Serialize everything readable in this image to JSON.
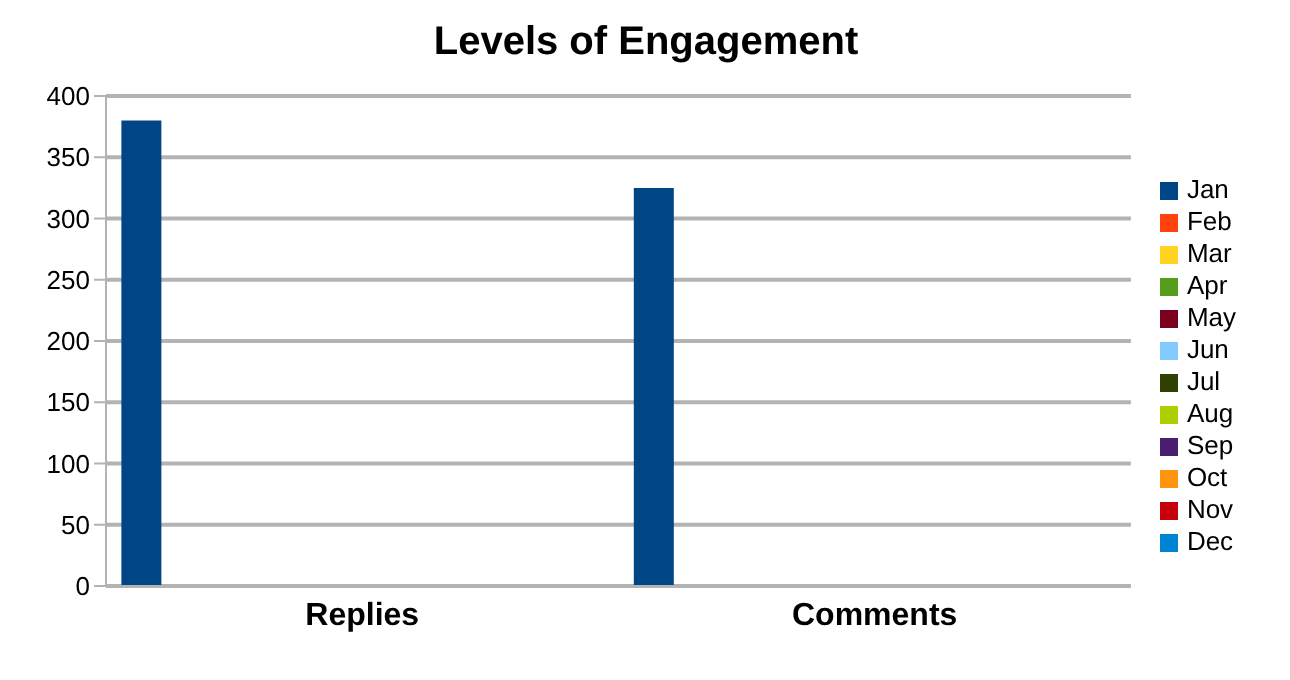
{
  "chart_data": {
    "type": "bar",
    "title": "Levels of Engagement",
    "categories": [
      "Replies",
      "Comments"
    ],
    "series": [
      {
        "name": "Jan",
        "color": "#004586",
        "values": [
          380,
          325
        ]
      },
      {
        "name": "Feb",
        "color": "#ff420e",
        "values": [
          0,
          0
        ]
      },
      {
        "name": "Mar",
        "color": "#ffd320",
        "values": [
          0,
          0
        ]
      },
      {
        "name": "Apr",
        "color": "#579d1c",
        "values": [
          0,
          0
        ]
      },
      {
        "name": "May",
        "color": "#7e0021",
        "values": [
          0,
          0
        ]
      },
      {
        "name": "Jun",
        "color": "#83caff",
        "values": [
          0,
          0
        ]
      },
      {
        "name": "Jul",
        "color": "#314004",
        "values": [
          0,
          0
        ]
      },
      {
        "name": "Aug",
        "color": "#aecf00",
        "values": [
          0,
          0
        ]
      },
      {
        "name": "Sep",
        "color": "#4b1f6f",
        "values": [
          0,
          0
        ]
      },
      {
        "name": "Oct",
        "color": "#ff950e",
        "values": [
          0,
          0
        ]
      },
      {
        "name": "Nov",
        "color": "#c5000b",
        "values": [
          0,
          0
        ]
      },
      {
        "name": "Dec",
        "color": "#0084d1",
        "values": [
          0,
          0
        ]
      }
    ],
    "ylim": [
      0,
      400
    ],
    "yticks": [
      0,
      50,
      100,
      150,
      200,
      250,
      300,
      350,
      400
    ],
    "grid": "y",
    "legend": "right"
  }
}
